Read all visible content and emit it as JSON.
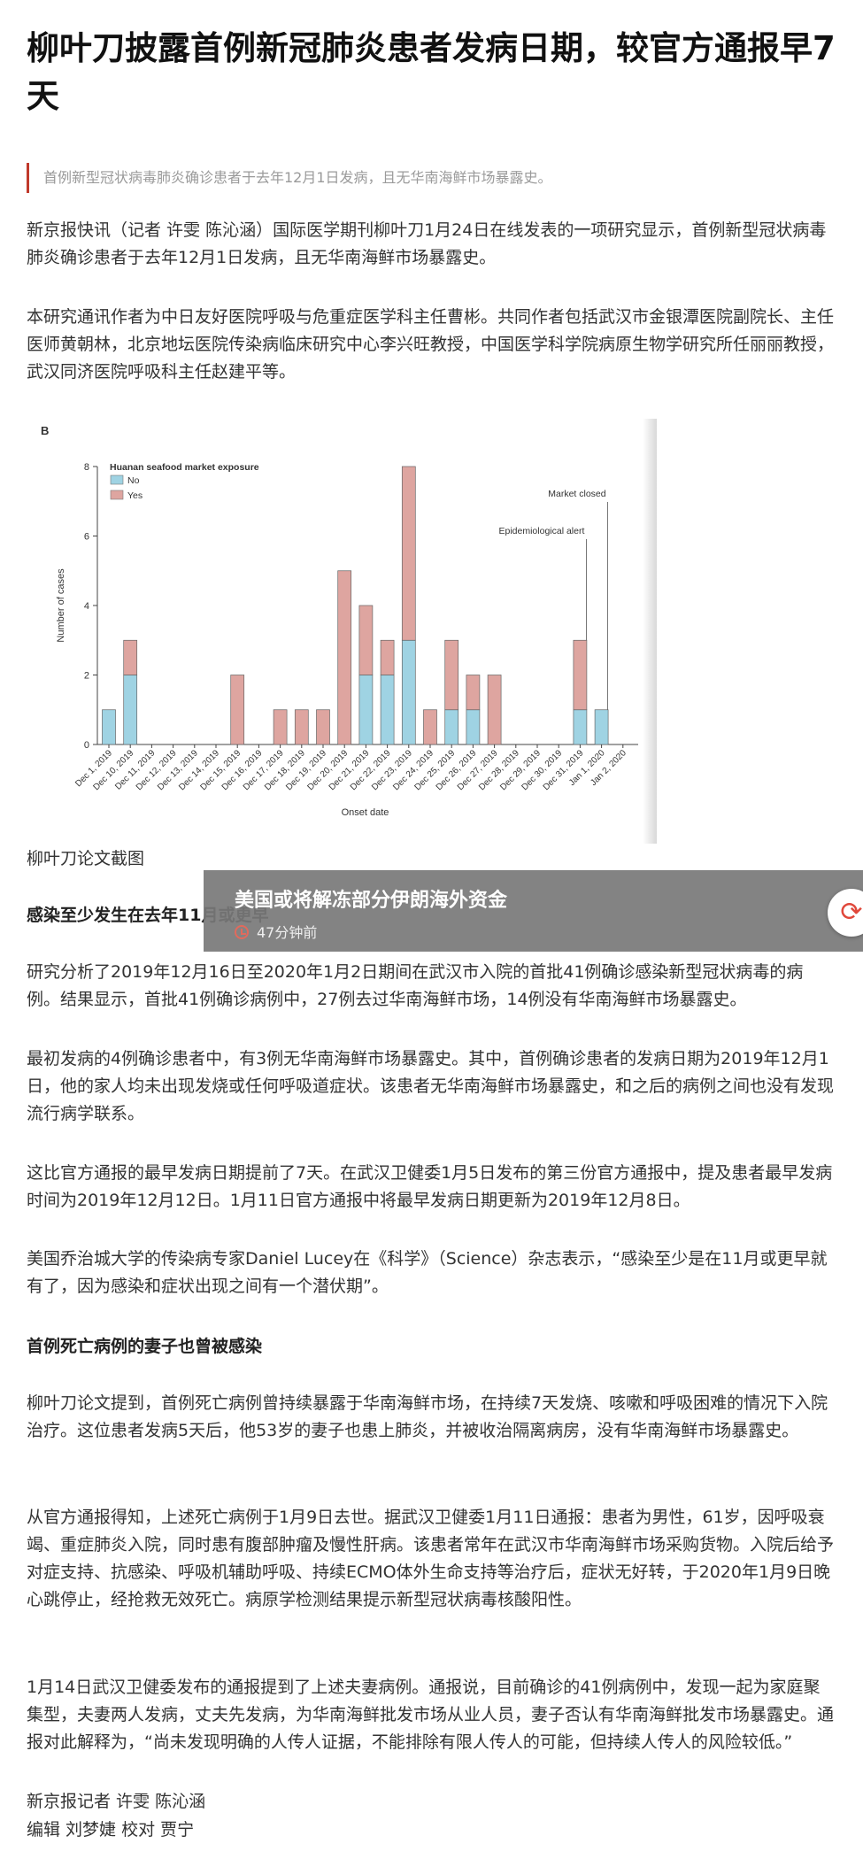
{
  "article": {
    "title": "柳叶刀披露首例新冠肺炎患者发病日期，较官方通报早7天",
    "summary": "首例新型冠状病毒肺炎确诊患者于去年12月1日发病，且无华南海鲜市场暴露史。",
    "p1": "新京报快讯（记者 许雯 陈沁涵）国际医学期刊柳叶刀1月24日在线发表的一项研究显示，首例新型冠状病毒肺炎确诊患者于去年12月1日发病，且无华南海鲜市场暴露史。",
    "p2": "本研究通讯作者为中日友好医院呼吸与危重症医学科主任曹彬。共同作者包括武汉市金银潭医院副院长、主任医师黄朝林，北京地坛医院传染病临床研究中心李兴旺教授，中国医学科学院病原生物学研究所任丽丽教授，武汉同济医院呼吸科主任赵建平等。",
    "caption": "柳叶刀论文截图",
    "heading1": "感染至少发生在去年11月或更早",
    "p3": "研究分析了2019年12月16日至2020年1月2日期间在武汉市入院的首批41例确诊感染新型冠状病毒的病例。结果显示，首批41例确诊病例中，27例去过华南海鲜市场，14例没有华南海鲜市场暴露史。",
    "p4": "最初发病的4例确诊患者中，有3例无华南海鲜市场暴露史。其中，首例确诊患者的发病日期为2019年12月1日，他的家人均未出现发烧或任何呼吸道症状。该患者无华南海鲜市场暴露史，和之后的病例之间也没有发现流行病学联系。",
    "p5": "这比官方通报的最早发病日期提前了7天。在武汉卫健委1月5日发布的第三份官方通报中，提及患者最早发病时间为2019年12月12日。1月11日官方通报中将最早发病日期更新为2019年12月8日。",
    "p6": "美国乔治城大学的传染病专家Daniel Lucey在《科学》（Science）杂志表示，“感染至少是在11月或更早就有了，因为感染和症状出现之间有一个潜伏期”。",
    "heading2": "首例死亡病例的妻子也曾被感染",
    "p7": "柳叶刀论文提到，首例死亡病例曾持续暴露于华南海鲜市场，在持续7天发烧、咳嗽和呼吸困难的情况下入院治疗。这位患者发病5天后，他53岁的妻子也患上肺炎，并被收治隔离病房，没有华南海鲜市场暴露史。",
    "p8": "从官方通报得知，上述死亡病例于1月9日去世。据武汉卫健委1月11日通报：患者为男性，61岁，因呼吸衰竭、重症肺炎入院，同时患有腹部肿瘤及慢性肝病。该患者常年在武汉市华南海鲜市场采购货物。入院后给予对症支持、抗感染、呼吸机辅助呼吸、持续ECMO体外生命支持等治疗后，症状无好转，于2020年1月9日晚心跳停止，经抢救无效死亡。病原学检测结果提示新型冠状病毒核酸阳性。",
    "p9": "1月14日武汉卫健委发布的通报提到了上述夫妻病例。通报说，目前确诊的41例病例中，发现一起为家庭聚集型，夫妻两人发病，丈夫先发病，为华南海鲜批发市场从业人员，妻子否认有华南海鲜批发市场暴露史。通报对此解释为，“尚未发现明确的人传人证据，不能排除有限人传人的可能，但持续人传人的风险较低。”",
    "credit1": "新京报记者 许雯 陈沁涵",
    "credit2": "编辑 刘梦婕 校对 贾宁"
  },
  "overlay": {
    "news_title": "美国或将解冻部分伊朗海外资金",
    "time": "47分钟前",
    "clock_icon": "clock-icon",
    "refresh_icon": "refresh-icon",
    "accent": "#e0483b",
    "background": "#787878"
  },
  "chart_data": {
    "type": "bar",
    "panel_label": "B",
    "legend_title": "Huanan seafood market exposure",
    "legend_position": "top-left",
    "xlabel": "Onset date",
    "ylabel": "Number of cases",
    "ylim": [
      0,
      8
    ],
    "yticks": [
      0,
      2,
      4,
      6,
      8
    ],
    "grid": false,
    "categories": [
      "Dec 1, 2019",
      "Dec 10, 2019",
      "Dec 11, 2019",
      "Dec 12, 2019",
      "Dec 13, 2019",
      "Dec 14, 2019",
      "Dec 15, 2019",
      "Dec 16, 2019",
      "Dec 17, 2019",
      "Dec 18, 2019",
      "Dec 19, 2019",
      "Dec 20, 2019",
      "Dec 21, 2019",
      "Dec 22, 2019",
      "Dec 23, 2019",
      "Dec 24, 2019",
      "Dec 25, 2019",
      "Dec 26, 2019",
      "Dec 27, 2019",
      "Dec 28, 2019",
      "Dec 29, 2019",
      "Dec 30, 2019",
      "Dec 31, 2019",
      "Jan 1, 2020",
      "Jan 2, 2020"
    ],
    "series": [
      {
        "name": "No",
        "color": "#9fd3e3",
        "values": [
          1,
          2,
          0,
          0,
          0,
          0,
          0,
          0,
          0,
          0,
          0,
          0,
          2,
          2,
          3,
          0,
          1,
          1,
          0,
          0,
          0,
          0,
          1,
          1,
          0
        ]
      },
      {
        "name": "Yes",
        "color": "#dea5a0",
        "values": [
          0,
          1,
          0,
          0,
          0,
          0,
          2,
          0,
          1,
          1,
          1,
          5,
          2,
          1,
          5,
          1,
          2,
          1,
          2,
          0,
          0,
          0,
          2,
          0,
          0
        ]
      }
    ],
    "annotations": [
      {
        "text": "Epidemiological alert",
        "category": "Dec 31, 2019"
      },
      {
        "text": "Market closed",
        "category": "Jan 1, 2020"
      }
    ]
  }
}
